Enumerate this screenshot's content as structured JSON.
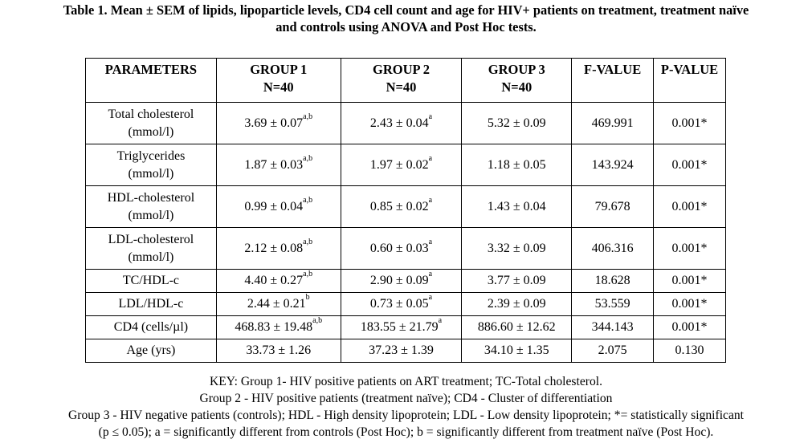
{
  "caption": {
    "line1": "Table 1. Mean ± SEM of lipids, lipoparticle levels, CD4 cell count and age for HIV+ patients on treatment, treatment naïve",
    "line2": "and controls using ANOVA and Post Hoc tests."
  },
  "table": {
    "headers": [
      {
        "title": "PARAMETERS",
        "sub": ""
      },
      {
        "title": "GROUP 1",
        "sub": "N=40"
      },
      {
        "title": "GROUP 2",
        "sub": "N=40"
      },
      {
        "title": "GROUP 3",
        "sub": "N=40"
      },
      {
        "title": "F-VALUE",
        "sub": ""
      },
      {
        "title": "P-VALUE",
        "sub": ""
      }
    ],
    "rows": [
      {
        "param": "Total cholesterol",
        "unit": "(mmol/l)",
        "g1": "3.69 ± 0.07",
        "g1_sup": "a,b",
        "g2": "2.43 ± 0.04",
        "g2_sup": "a",
        "g3": "5.32 ± 0.09",
        "f": "469.991",
        "p": "0.001*"
      },
      {
        "param": "Triglycerides",
        "unit": "(mmol/l)",
        "g1": "1.87 ± 0.03",
        "g1_sup": "a,b",
        "g2": "1.97 ± 0.02",
        "g2_sup": "a",
        "g3": "1.18 ± 0.05",
        "f": "143.924",
        "p": "0.001*"
      },
      {
        "param": "HDL-cholesterol",
        "unit": "(mmol/l)",
        "g1": "0.99 ± 0.04",
        "g1_sup": "a,b",
        "g2": "0.85 ± 0.02",
        "g2_sup": "a",
        "g3": "1.43 ± 0.04",
        "f": "79.678",
        "p": "0.001*"
      },
      {
        "param": "LDL-cholesterol",
        "unit": "(mmol/l)",
        "g1": "2.12 ± 0.08",
        "g1_sup": "a,b",
        "g2": "0.60 ± 0.03",
        "g2_sup": "a",
        "g3": "3.32 ± 0.09",
        "f": "406.316",
        "p": "0.001*"
      },
      {
        "param": "TC/HDL-c",
        "unit": "",
        "g1": "4.40 ± 0.27",
        "g1_sup": "a,b",
        "g2": "2.90 ± 0.09",
        "g2_sup": "a",
        "g3": "3.77 ± 0.09",
        "f": "18.628",
        "p": "0.001*"
      },
      {
        "param": "LDL/HDL-c",
        "unit": "",
        "g1": "2.44 ± 0.21",
        "g1_sup": "b",
        "g2": "0.73 ± 0.05",
        "g2_sup": "a",
        "g3": "2.39 ± 0.09",
        "f": "53.559",
        "p": "0.001*"
      },
      {
        "param": "CD4 (cells/µl)",
        "unit": "",
        "g1": "468.83 ± 19.48",
        "g1_sup": "a,b",
        "g2": "183.55 ± 21.79",
        "g2_sup": "a",
        "g3": "886.60 ± 12.62",
        "f": "344.143",
        "p": "0.001*"
      },
      {
        "param": "Age (yrs)",
        "unit": "",
        "g1": "33.73 ± 1.26",
        "g1_sup": "",
        "g2": "37.23 ± 1.39",
        "g2_sup": "",
        "g3": "34.10 ± 1.35",
        "f": "2.075",
        "p": "0.130"
      }
    ]
  },
  "key": {
    "line1": "KEY: Group 1- HIV positive patients on ART treatment; TC-Total cholesterol.",
    "line2": "Group 2 - HIV positive patients (treatment naïve); CD4 - Cluster of differentiation",
    "line3": "Group 3 - HIV negative patients (controls); HDL - High density lipoprotein; LDL - Low density lipoprotein; *= statistically significant",
    "line4": "(p ≤ 0.05); a = significantly different from controls (Post Hoc); b = significantly different from treatment naïve (Post Hoc)."
  }
}
